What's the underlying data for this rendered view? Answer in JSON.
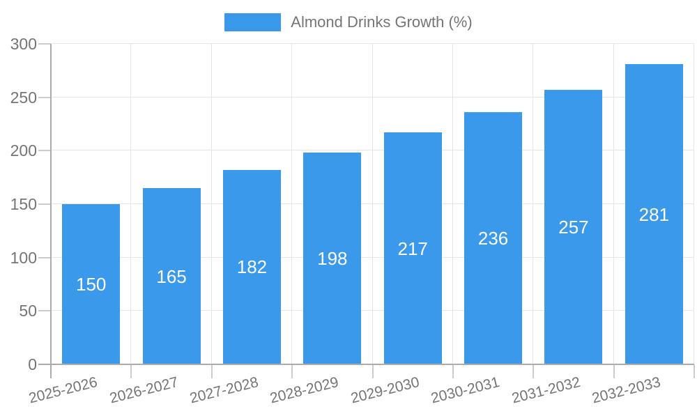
{
  "chart_data": {
    "type": "bar",
    "title": "",
    "legend": "Almond Drinks Growth (%)",
    "legend_position": "top-center",
    "categories": [
      "2025-2026",
      "2026-2027",
      "2027-2028",
      "2028-2029",
      "2029-2030",
      "2030-2031",
      "2031-2032",
      "2032-2033"
    ],
    "values": [
      150,
      165,
      182,
      198,
      217,
      236,
      257,
      281
    ],
    "xlabel": "",
    "ylabel": "",
    "ylim": [
      0,
      300
    ],
    "yticks": [
      0,
      50,
      100,
      150,
      200,
      250,
      300
    ],
    "grid": true,
    "value_labels": "inside-center-white",
    "x_label_rotation_deg": -14,
    "colors": {
      "bar": "#3B99EC",
      "value_label": "#ffffff",
      "text": "#757575",
      "grid": "#e6e6e6",
      "axis": "#ababab",
      "tick": "#cccccc",
      "background": "#ffffff"
    }
  }
}
